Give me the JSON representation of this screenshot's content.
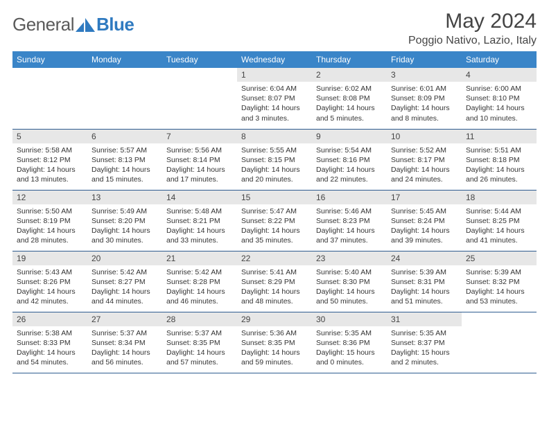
{
  "brand": {
    "name1": "General",
    "name2": "Blue",
    "accent": "#2f7ac0",
    "text_color": "#5a5a5a"
  },
  "header": {
    "title": "May 2024",
    "location": "Poggio Nativo, Lazio, Italy"
  },
  "calendar": {
    "header_bg": "#3a85c8",
    "daynum_bg": "#e7e7e7",
    "row_border": "#2d5b8f",
    "dow": [
      "Sunday",
      "Monday",
      "Tuesday",
      "Wednesday",
      "Thursday",
      "Friday",
      "Saturday"
    ],
    "weeks": [
      [
        null,
        null,
        null,
        {
          "n": "1",
          "sr": "6:04 AM",
          "ss": "8:07 PM",
          "dl": "14 hours and 3 minutes."
        },
        {
          "n": "2",
          "sr": "6:02 AM",
          "ss": "8:08 PM",
          "dl": "14 hours and 5 minutes."
        },
        {
          "n": "3",
          "sr": "6:01 AM",
          "ss": "8:09 PM",
          "dl": "14 hours and 8 minutes."
        },
        {
          "n": "4",
          "sr": "6:00 AM",
          "ss": "8:10 PM",
          "dl": "14 hours and 10 minutes."
        }
      ],
      [
        {
          "n": "5",
          "sr": "5:58 AM",
          "ss": "8:12 PM",
          "dl": "14 hours and 13 minutes."
        },
        {
          "n": "6",
          "sr": "5:57 AM",
          "ss": "8:13 PM",
          "dl": "14 hours and 15 minutes."
        },
        {
          "n": "7",
          "sr": "5:56 AM",
          "ss": "8:14 PM",
          "dl": "14 hours and 17 minutes."
        },
        {
          "n": "8",
          "sr": "5:55 AM",
          "ss": "8:15 PM",
          "dl": "14 hours and 20 minutes."
        },
        {
          "n": "9",
          "sr": "5:54 AM",
          "ss": "8:16 PM",
          "dl": "14 hours and 22 minutes."
        },
        {
          "n": "10",
          "sr": "5:52 AM",
          "ss": "8:17 PM",
          "dl": "14 hours and 24 minutes."
        },
        {
          "n": "11",
          "sr": "5:51 AM",
          "ss": "8:18 PM",
          "dl": "14 hours and 26 minutes."
        }
      ],
      [
        {
          "n": "12",
          "sr": "5:50 AM",
          "ss": "8:19 PM",
          "dl": "14 hours and 28 minutes."
        },
        {
          "n": "13",
          "sr": "5:49 AM",
          "ss": "8:20 PM",
          "dl": "14 hours and 30 minutes."
        },
        {
          "n": "14",
          "sr": "5:48 AM",
          "ss": "8:21 PM",
          "dl": "14 hours and 33 minutes."
        },
        {
          "n": "15",
          "sr": "5:47 AM",
          "ss": "8:22 PM",
          "dl": "14 hours and 35 minutes."
        },
        {
          "n": "16",
          "sr": "5:46 AM",
          "ss": "8:23 PM",
          "dl": "14 hours and 37 minutes."
        },
        {
          "n": "17",
          "sr": "5:45 AM",
          "ss": "8:24 PM",
          "dl": "14 hours and 39 minutes."
        },
        {
          "n": "18",
          "sr": "5:44 AM",
          "ss": "8:25 PM",
          "dl": "14 hours and 41 minutes."
        }
      ],
      [
        {
          "n": "19",
          "sr": "5:43 AM",
          "ss": "8:26 PM",
          "dl": "14 hours and 42 minutes."
        },
        {
          "n": "20",
          "sr": "5:42 AM",
          "ss": "8:27 PM",
          "dl": "14 hours and 44 minutes."
        },
        {
          "n": "21",
          "sr": "5:42 AM",
          "ss": "8:28 PM",
          "dl": "14 hours and 46 minutes."
        },
        {
          "n": "22",
          "sr": "5:41 AM",
          "ss": "8:29 PM",
          "dl": "14 hours and 48 minutes."
        },
        {
          "n": "23",
          "sr": "5:40 AM",
          "ss": "8:30 PM",
          "dl": "14 hours and 50 minutes."
        },
        {
          "n": "24",
          "sr": "5:39 AM",
          "ss": "8:31 PM",
          "dl": "14 hours and 51 minutes."
        },
        {
          "n": "25",
          "sr": "5:39 AM",
          "ss": "8:32 PM",
          "dl": "14 hours and 53 minutes."
        }
      ],
      [
        {
          "n": "26",
          "sr": "5:38 AM",
          "ss": "8:33 PM",
          "dl": "14 hours and 54 minutes."
        },
        {
          "n": "27",
          "sr": "5:37 AM",
          "ss": "8:34 PM",
          "dl": "14 hours and 56 minutes."
        },
        {
          "n": "28",
          "sr": "5:37 AM",
          "ss": "8:35 PM",
          "dl": "14 hours and 57 minutes."
        },
        {
          "n": "29",
          "sr": "5:36 AM",
          "ss": "8:35 PM",
          "dl": "14 hours and 59 minutes."
        },
        {
          "n": "30",
          "sr": "5:35 AM",
          "ss": "8:36 PM",
          "dl": "15 hours and 0 minutes."
        },
        {
          "n": "31",
          "sr": "5:35 AM",
          "ss": "8:37 PM",
          "dl": "15 hours and 2 minutes."
        },
        null
      ]
    ],
    "labels": {
      "sunrise": "Sunrise:",
      "sunset": "Sunset:",
      "daylight": "Daylight:"
    }
  }
}
